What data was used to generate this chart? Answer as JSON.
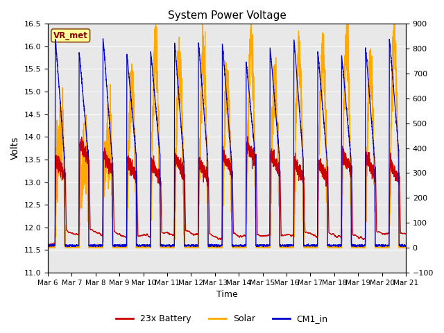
{
  "title": "System Power Voltage",
  "xlabel": "Time",
  "ylabel_left": "Volts",
  "ylim_left": [
    11.0,
    16.5
  ],
  "ylim_right": [
    -100,
    900
  ],
  "yticks_left": [
    11.0,
    11.5,
    12.0,
    12.5,
    13.0,
    13.5,
    14.0,
    14.5,
    15.0,
    15.5,
    16.0,
    16.5
  ],
  "yticks_right": [
    -100,
    0,
    100,
    200,
    300,
    400,
    500,
    600,
    700,
    800,
    900
  ],
  "xtick_labels": [
    "Mar 6",
    "Mar 7",
    "Mar 8",
    "Mar 9",
    "Mar 10",
    "Mar 11",
    "Mar 12",
    "Mar 13",
    "Mar 14",
    "Mar 15",
    "Mar 16",
    "Mar 17",
    "Mar 18",
    "Mar 19",
    "Mar 20",
    "Mar 21"
  ],
  "bg_color": "#e8e8e8",
  "grid_color": "#ffffff",
  "battery_color": "#cc0000",
  "solar_color": "#ffaa00",
  "cm1_color": "#0000cc",
  "battery_label": "23x Battery",
  "solar_label": "Solar",
  "cm1_label": "CM1_in",
  "vr_met_label": "VR_met",
  "num_days": 15,
  "samples_per_day": 288,
  "night_batt": 11.62,
  "day_batt_peak": 13.9,
  "cm1_night": 11.6,
  "cm1_spike": 15.9
}
